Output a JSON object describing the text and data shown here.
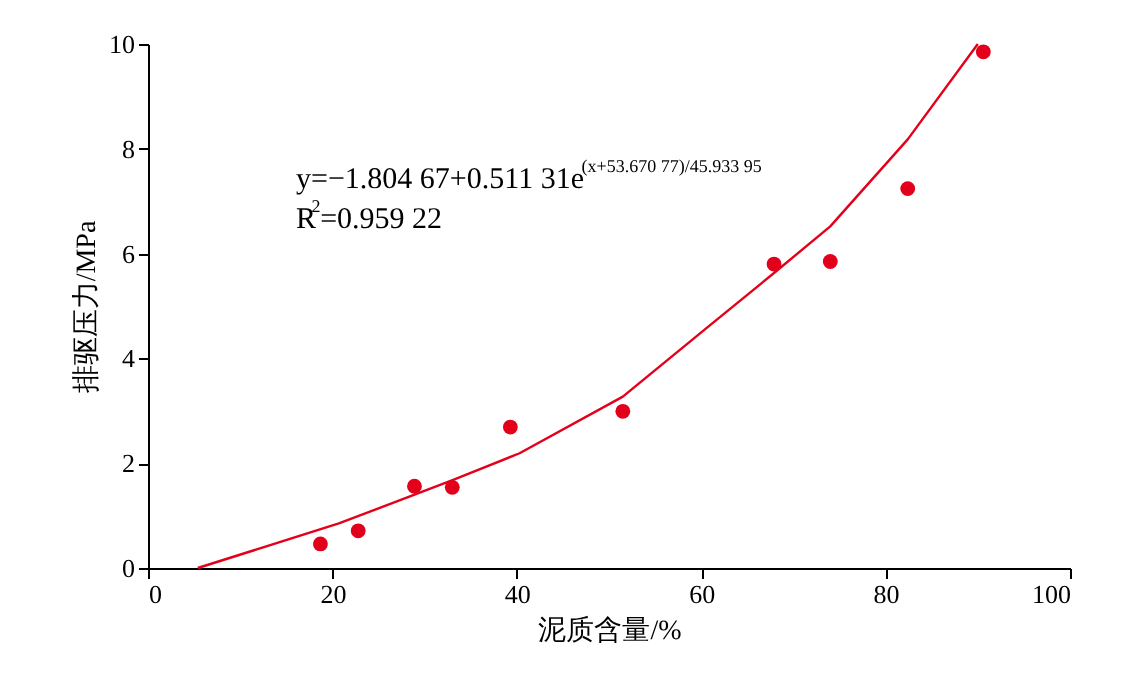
{
  "chart_data": {
    "type": "scatter",
    "xlabel": "泥质含量/%",
    "ylabel": "排驱压力/MPa",
    "xlim": [
      0,
      100
    ],
    "xticks": [
      0,
      20,
      40,
      60,
      80,
      100
    ],
    "ylim": [
      0,
      10
    ],
    "yticks": [
      0,
      2,
      4,
      6,
      8,
      10
    ],
    "grid": false,
    "series": [
      {
        "marker": "circle",
        "color": "#e3001b",
        "x": [
          18.7,
          22.8,
          28.9,
          33.0,
          39.3,
          51.5,
          67.9,
          74.0,
          82.4,
          90.6
        ],
        "values": [
          0.46,
          0.71,
          1.56,
          1.54,
          2.69,
          2.99,
          5.8,
          5.85,
          7.24,
          9.85
        ]
      },
      {
        "type": "line",
        "line_style": "solid",
        "color": "#e3001b",
        "x": [
          5.4,
          20.7,
          33.1,
          40.3,
          51.5,
          60.8,
          67.9,
          74.0,
          82.4,
          90.0
        ],
        "values": [
          0,
          0.85,
          1.68,
          2.19,
          3.27,
          4.61,
          5.63,
          6.52,
          8.18,
          10.0
        ]
      }
    ],
    "annotations": [
      "y=−1.804 67+0.511 31e$^{(x+53.670 77)/45.933 95}$",
      "R$^{2}$=0.959 22"
    ]
  }
}
